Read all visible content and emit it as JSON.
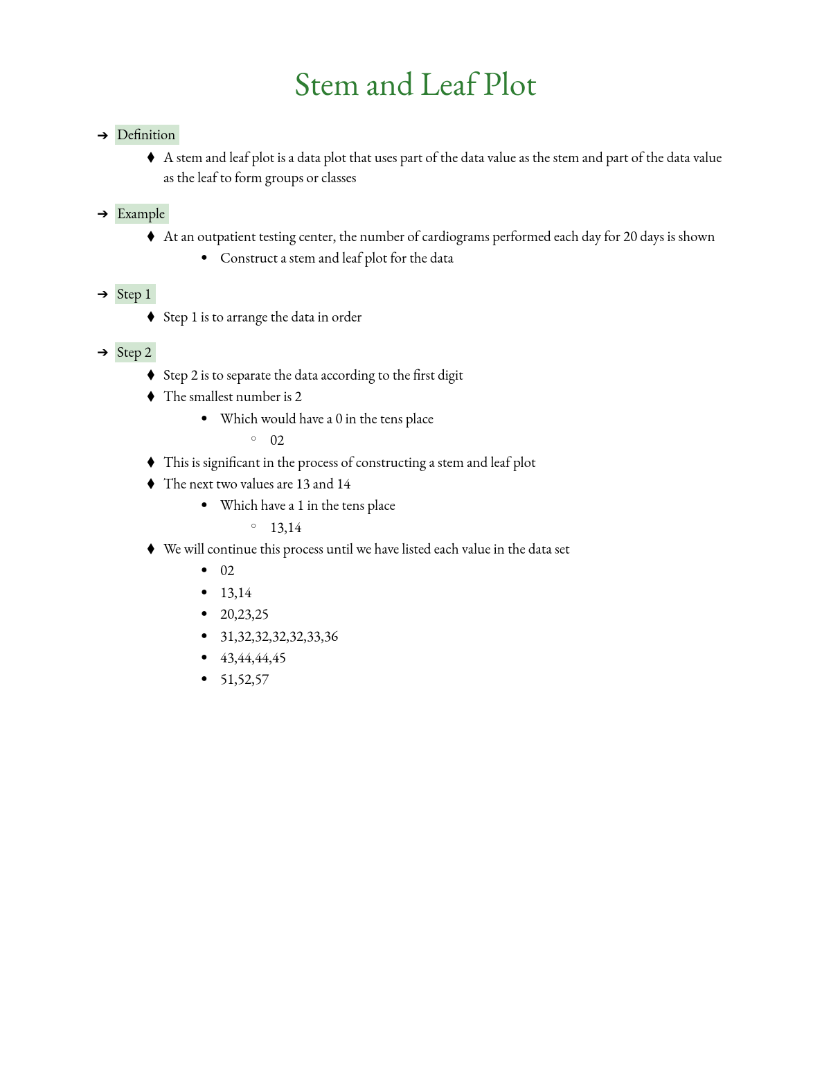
{
  "styling": {
    "title_color": "#2e7d32",
    "title_fontsize": 48,
    "body_fontsize": 21,
    "highlight_bg": "#d2e6d2",
    "text_color": "#000000",
    "background_color": "#ffffff",
    "font_family": "Garamond"
  },
  "title": "Stem and Leaf Plot",
  "sections": [
    {
      "label": "Definition",
      "items": [
        {
          "level": 1,
          "text": "A stem and leaf plot is a data plot that uses part of the data value as the stem and part of the data value as the leaf to form groups or classes"
        }
      ]
    },
    {
      "label": "Example",
      "items": [
        {
          "level": 1,
          "text": "At an outpatient testing center, the number of cardiograms performed each day for 20 days is shown"
        },
        {
          "level": 2,
          "text": "Construct a stem and leaf plot for the data"
        }
      ]
    },
    {
      "label": "Step 1",
      "items": [
        {
          "level": 1,
          "text": "Step 1 is to arrange the data in order"
        }
      ]
    },
    {
      "label": "Step 2",
      "items": [
        {
          "level": 1,
          "text": "Step 2 is to separate the data according to the first digit"
        },
        {
          "level": 1,
          "text": "The smallest number is 2"
        },
        {
          "level": 2,
          "text": "Which would have a 0 in the tens place"
        },
        {
          "level": 3,
          "text": "02"
        },
        {
          "level": 1,
          "text": "This is significant in the process of constructing a stem and leaf plot"
        },
        {
          "level": 1,
          "text": "The next two values are 13 and 14"
        },
        {
          "level": 2,
          "text": "Which have a 1 in the tens place"
        },
        {
          "level": 3,
          "text": "13,14"
        },
        {
          "level": 1,
          "text": "We will continue this process until we have listed each value in the data set"
        },
        {
          "level": 2,
          "text": "02"
        },
        {
          "level": 2,
          "text": "13,14"
        },
        {
          "level": 2,
          "text": "20,23,25"
        },
        {
          "level": 2,
          "text": "31,32,32,32,32,33,36"
        },
        {
          "level": 2,
          "text": "43,44,44,45"
        },
        {
          "level": 2,
          "text": "51,52,57"
        }
      ]
    }
  ]
}
